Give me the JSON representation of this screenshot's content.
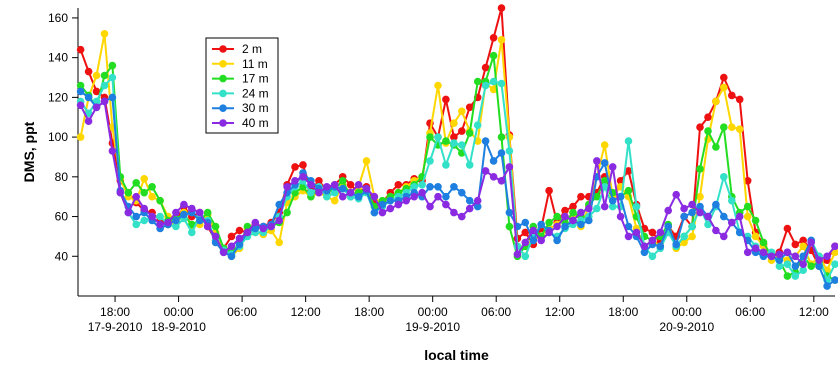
{
  "chart_data": {
    "type": "line",
    "xlabel": "local time",
    "ylabel": "DMS, ppt",
    "ylim": [
      20,
      165
    ],
    "xlim": [
      "2010-09-17 14:30",
      "2010-09-20 14:00"
    ],
    "y_ticks": [
      40,
      60,
      80,
      100,
      120,
      140,
      160
    ],
    "x_ticks": [
      {
        "t": "2010-09-17 18:00",
        "label": "18:00"
      },
      {
        "t": "2010-09-18 00:00",
        "label": "00:00"
      },
      {
        "t": "2010-09-18 06:00",
        "label": "06:00"
      },
      {
        "t": "2010-09-18 12:00",
        "label": "12:00"
      },
      {
        "t": "2010-09-18 18:00",
        "label": "18:00"
      },
      {
        "t": "2010-09-19 00:00",
        "label": "00:00"
      },
      {
        "t": "2010-09-19 06:00",
        "label": "06:00"
      },
      {
        "t": "2010-09-19 12:00",
        "label": "12:00"
      },
      {
        "t": "2010-09-19 18:00",
        "label": "18:00"
      },
      {
        "t": "2010-09-20 00:00",
        "label": "00:00"
      },
      {
        "t": "2010-09-20 06:00",
        "label": "06:00"
      },
      {
        "t": "2010-09-20 12:00",
        "label": "12:00"
      }
    ],
    "date_labels": [
      {
        "t": "2010-09-17 18:00",
        "label": "17-9-2010"
      },
      {
        "t": "2010-09-18 00:00",
        "label": "18-9-2010"
      },
      {
        "t": "2010-09-19 00:00",
        "label": "19-9-2010"
      },
      {
        "t": "2010-09-20 00:00",
        "label": "20-9-2010"
      }
    ],
    "legend_position": "top-left",
    "grid": false,
    "x": [
      "2010-09-17 14:45",
      "2010-09-17 15:30",
      "2010-09-17 16:15",
      "2010-09-17 17:00",
      "2010-09-17 17:45",
      "2010-09-17 18:30",
      "2010-09-17 19:15",
      "2010-09-17 20:00",
      "2010-09-17 20:45",
      "2010-09-17 21:30",
      "2010-09-17 22:15",
      "2010-09-17 23:00",
      "2010-09-17 23:45",
      "2010-09-18 00:30",
      "2010-09-18 01:15",
      "2010-09-18 02:00",
      "2010-09-18 02:45",
      "2010-09-18 03:30",
      "2010-09-18 04:15",
      "2010-09-18 05:00",
      "2010-09-18 05:45",
      "2010-09-18 06:30",
      "2010-09-18 07:15",
      "2010-09-18 08:00",
      "2010-09-18 08:45",
      "2010-09-18 09:30",
      "2010-09-18 10:15",
      "2010-09-18 11:00",
      "2010-09-18 11:45",
      "2010-09-18 12:30",
      "2010-09-18 13:15",
      "2010-09-18 14:00",
      "2010-09-18 14:45",
      "2010-09-18 15:30",
      "2010-09-18 16:15",
      "2010-09-18 17:00",
      "2010-09-18 17:45",
      "2010-09-18 18:30",
      "2010-09-18 19:15",
      "2010-09-18 20:00",
      "2010-09-18 20:45",
      "2010-09-18 21:30",
      "2010-09-18 22:15",
      "2010-09-18 23:00",
      "2010-09-18 23:45",
      "2010-09-19 00:30",
      "2010-09-19 01:15",
      "2010-09-19 02:00",
      "2010-09-19 02:45",
      "2010-09-19 03:30",
      "2010-09-19 04:15",
      "2010-09-19 05:00",
      "2010-09-19 05:45",
      "2010-09-19 06:30",
      "2010-09-19 07:15",
      "2010-09-19 08:00",
      "2010-09-19 08:45",
      "2010-09-19 09:30",
      "2010-09-19 10:15",
      "2010-09-19 11:00",
      "2010-09-19 11:45",
      "2010-09-19 12:30",
      "2010-09-19 13:15",
      "2010-09-19 14:00",
      "2010-09-19 14:45",
      "2010-09-19 15:30",
      "2010-09-19 16:15",
      "2010-09-19 17:00",
      "2010-09-19 17:45",
      "2010-09-19 18:30",
      "2010-09-19 19:15",
      "2010-09-19 20:00",
      "2010-09-19 20:45",
      "2010-09-19 21:30",
      "2010-09-19 22:15",
      "2010-09-19 23:00",
      "2010-09-19 23:45",
      "2010-09-20 00:30",
      "2010-09-20 01:15",
      "2010-09-20 02:00",
      "2010-09-20 02:45",
      "2010-09-20 03:30",
      "2010-09-20 04:15",
      "2010-09-20 05:00",
      "2010-09-20 05:45",
      "2010-09-20 06:30",
      "2010-09-20 07:15",
      "2010-09-20 08:00",
      "2010-09-20 08:45",
      "2010-09-20 09:30",
      "2010-09-20 10:15",
      "2010-09-20 11:00",
      "2010-09-20 11:45",
      "2010-09-20 12:30",
      "2010-09-20 13:15",
      "2010-09-20 14:00"
    ],
    "series": [
      {
        "name": "2 m",
        "color": "#ee1111",
        "values": [
          144,
          133,
          123,
          120,
          97,
          78,
          72,
          67,
          63,
          62,
          58,
          56,
          58,
          65,
          60,
          62,
          55,
          48,
          44,
          50,
          53,
          52,
          56,
          55,
          57,
          62,
          76,
          85,
          86,
          73,
          78,
          73,
          76,
          80,
          76,
          72,
          75,
          68,
          67,
          72,
          76,
          76,
          79,
          78,
          107,
          100,
          119,
          100,
          103,
          115,
          120,
          135,
          150,
          165,
          101,
          49,
          52,
          46,
          54,
          73,
          57,
          63,
          65,
          70,
          70,
          72,
          80,
          70,
          78,
          83,
          66,
          54,
          52,
          47,
          55,
          50,
          60,
          55,
          105,
          110,
          118,
          130,
          121,
          119,
          78,
          52,
          46,
          40,
          42,
          54,
          46,
          48,
          43,
          35,
          38,
          45
        ]
      },
      {
        "name": "11 m",
        "color": "#ffd700",
        "values": [
          100,
          120,
          131,
          152,
          105,
          79,
          70,
          68,
          79,
          70,
          68,
          60,
          56,
          62,
          55,
          56,
          61,
          52,
          44,
          40,
          44,
          54,
          52,
          51,
          53,
          47,
          67,
          70,
          73,
          70,
          72,
          70,
          68,
          76,
          72,
          75,
          88,
          70,
          66,
          70,
          72,
          75,
          78,
          80,
          102,
          126,
          97,
          107,
          113,
          103,
          98,
          127,
          124,
          149,
          100,
          45,
          40,
          52,
          50,
          54,
          56,
          60,
          60,
          55,
          65,
          80,
          96,
          70,
          75,
          70,
          54,
          45,
          48,
          45,
          55,
          44,
          47,
          50,
          70,
          99,
          118,
          125,
          105,
          104,
          60,
          50,
          45,
          38,
          40,
          38,
          40,
          45,
          36,
          40,
          33,
          42
        ]
      },
      {
        "name": "17 m",
        "color": "#22dd22",
        "values": [
          126,
          121,
          115,
          131,
          136,
          80,
          72,
          77,
          72,
          75,
          68,
          58,
          59,
          61,
          56,
          58,
          62,
          55,
          44,
          42,
          46,
          55,
          55,
          54,
          55,
          57,
          62,
          72,
          75,
          70,
          74,
          72,
          74,
          78,
          70,
          72,
          74,
          65,
          68,
          70,
          72,
          74,
          76,
          80,
          100,
          96,
          98,
          96,
          92,
          102,
          128,
          128,
          141,
          100,
          55,
          40,
          45,
          55,
          50,
          57,
          60,
          57,
          62,
          60,
          66,
          70,
          78,
          72,
          70,
          73,
          60,
          50,
          48,
          50,
          56,
          45,
          50,
          55,
          84,
          103,
          95,
          105,
          70,
          62,
          65,
          58,
          47,
          40,
          38,
          30,
          32,
          40,
          35,
          37,
          30,
          28
        ]
      },
      {
        "name": "24 m",
        "color": "#33e0c8",
        "values": [
          118,
          112,
          118,
          126,
          130,
          72,
          62,
          56,
          58,
          60,
          60,
          56,
          55,
          59,
          52,
          60,
          58,
          48,
          43,
          41,
          45,
          50,
          52,
          52,
          55,
          60,
          70,
          75,
          78,
          72,
          75,
          70,
          72,
          74,
          70,
          69,
          72,
          62,
          65,
          68,
          70,
          72,
          75,
          76,
          88,
          100,
          86,
          97,
          96,
          86,
          106,
          126,
          128,
          127,
          93,
          45,
          40,
          50,
          56,
          52,
          50,
          54,
          56,
          58,
          60,
          64,
          75,
          65,
          65,
          98,
          65,
          45,
          40,
          44,
          52,
          45,
          50,
          55,
          64,
          56,
          65,
          80,
          68,
          52,
          50,
          45,
          40,
          42,
          35,
          36,
          30,
          33,
          48,
          40,
          28,
          36
        ]
      },
      {
        "name": "30 m",
        "color": "#1e7fe0",
        "values": [
          123,
          120,
          115,
          118,
          120,
          73,
          65,
          60,
          62,
          58,
          54,
          56,
          58,
          61,
          62,
          58,
          57,
          47,
          42,
          40,
          46,
          52,
          54,
          55,
          56,
          66,
          72,
          76,
          82,
          78,
          74,
          73,
          75,
          74,
          72,
          70,
          73,
          62,
          66,
          68,
          68,
          70,
          72,
          70,
          75,
          75,
          70,
          75,
          72,
          68,
          65,
          98,
          88,
          92,
          62,
          55,
          57,
          48,
          56,
          53,
          48,
          55,
          58,
          56,
          58,
          80,
          87,
          68,
          70,
          55,
          50,
          42,
          46,
          45,
          55,
          46,
          60,
          62,
          65,
          60,
          66,
          60,
          57,
          52,
          48,
          42,
          40,
          40,
          38,
          42,
          35,
          40,
          48,
          35,
          25,
          28
        ]
      },
      {
        "name": "40 m",
        "color": "#8a2be2",
        "values": [
          116,
          108,
          115,
          118,
          93,
          72,
          62,
          70,
          64,
          60,
          56,
          57,
          62,
          66,
          64,
          62,
          55,
          50,
          42,
          45,
          49,
          52,
          57,
          54,
          55,
          58,
          75,
          78,
          80,
          76,
          72,
          75,
          76,
          70,
          72,
          76,
          74,
          70,
          62,
          64,
          66,
          68,
          70,
          72,
          65,
          70,
          66,
          62,
          60,
          64,
          68,
          83,
          80,
          78,
          85,
          41,
          47,
          53,
          48,
          52,
          55,
          60,
          58,
          62,
          64,
          88,
          65,
          85,
          60,
          50,
          52,
          45,
          48,
          52,
          63,
          71,
          64,
          66,
          62,
          60,
          53,
          50,
          57,
          60,
          42,
          44,
          42,
          40,
          41,
          42,
          40,
          36,
          47,
          38,
          40,
          45
        ]
      }
    ]
  }
}
